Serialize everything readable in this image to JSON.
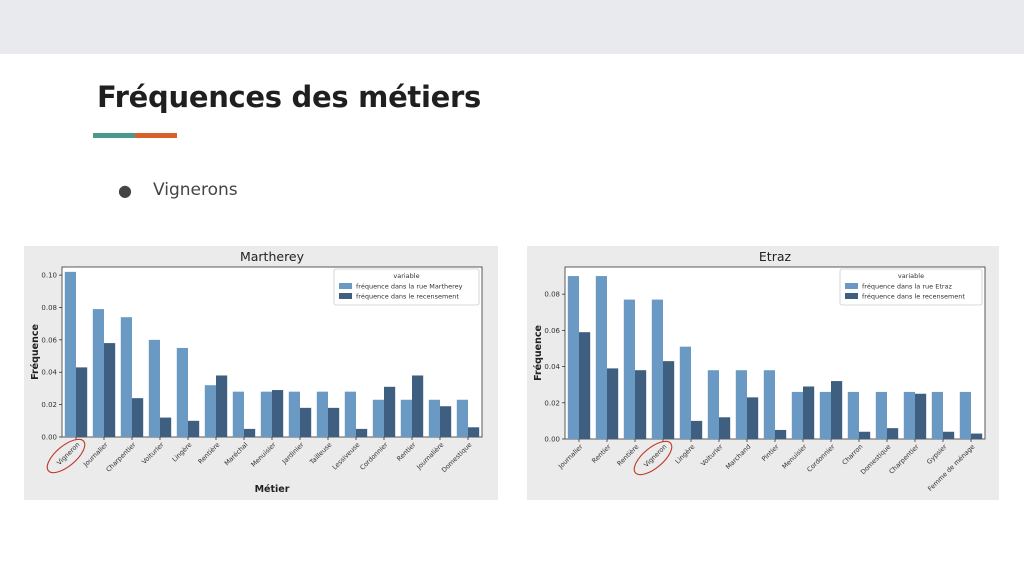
{
  "slide": {
    "title": "Fréquences des métiers",
    "bullet": "Vignerons",
    "accent_colors": [
      "#4a9a8c",
      "#d9602a"
    ]
  },
  "colors": {
    "light_bar": "#6a9ac4",
    "dark_bar": "#3e5f80",
    "highlight_circle": "#c0392b"
  },
  "chart_data": [
    {
      "type": "bar",
      "title": "Martherey",
      "xlabel": "Métier",
      "ylabel": "Fréquence",
      "ylim": [
        0,
        0.105
      ],
      "yticks": [
        0.0,
        0.02,
        0.04,
        0.06,
        0.08,
        0.1
      ],
      "ytick_labels": [
        "0.00",
        "0.02",
        "0.04",
        "0.06",
        "0.08",
        "0.10"
      ],
      "legend_title": "variable",
      "legend_position": "top-right",
      "categories": [
        "Vigneron",
        "Journalier",
        "Charpentier",
        "Voiturier",
        "Lingère",
        "Rentière",
        "Maréchal",
        "Menuisier",
        "Jardinier",
        "Tailleuse",
        "Lessiveuse",
        "Cordonnier",
        "Rentier",
        "Journalière",
        "Domestique"
      ],
      "series": [
        {
          "name": "fréquence dans la rue Martherey",
          "values": [
            0.102,
            0.079,
            0.074,
            0.06,
            0.055,
            0.032,
            0.028,
            0.028,
            0.028,
            0.028,
            0.028,
            0.023,
            0.023,
            0.023,
            0.023
          ]
        },
        {
          "name": "fréquence dans le recensement",
          "values": [
            0.043,
            0.058,
            0.024,
            0.012,
            0.01,
            0.038,
            0.005,
            0.029,
            0.018,
            0.018,
            0.005,
            0.031,
            0.038,
            0.019,
            0.006
          ]
        }
      ],
      "highlight_category": "Vigneron"
    },
    {
      "type": "bar",
      "title": "Etraz",
      "xlabel": "",
      "ylabel": "Fréquence",
      "ylim": [
        0,
        0.095
      ],
      "yticks": [
        0.0,
        0.02,
        0.04,
        0.06,
        0.08
      ],
      "ytick_labels": [
        "0.00",
        "0.02",
        "0.04",
        "0.06",
        "0.08"
      ],
      "legend_title": "variable",
      "legend_position": "top-right",
      "categories": [
        "Journalier",
        "Rentier",
        "Rentière",
        "Vigneron",
        "Lingère",
        "Voiturier",
        "Marchand",
        "Pintier",
        "Menuisier",
        "Cordonnier",
        "Charron",
        "Domestique",
        "Charpentier",
        "Gypsier",
        "Femme de ménage"
      ],
      "series": [
        {
          "name": "fréquence dans la rue Etraz",
          "values": [
            0.09,
            0.09,
            0.077,
            0.077,
            0.051,
            0.038,
            0.038,
            0.038,
            0.026,
            0.026,
            0.026,
            0.026,
            0.026,
            0.026,
            0.026
          ]
        },
        {
          "name": "fréquence dans le recensement",
          "values": [
            0.059,
            0.039,
            0.038,
            0.043,
            0.01,
            0.012,
            0.023,
            0.005,
            0.029,
            0.032,
            0.004,
            0.006,
            0.025,
            0.004,
            0.003
          ]
        }
      ],
      "highlight_category": "Vigneron"
    }
  ]
}
